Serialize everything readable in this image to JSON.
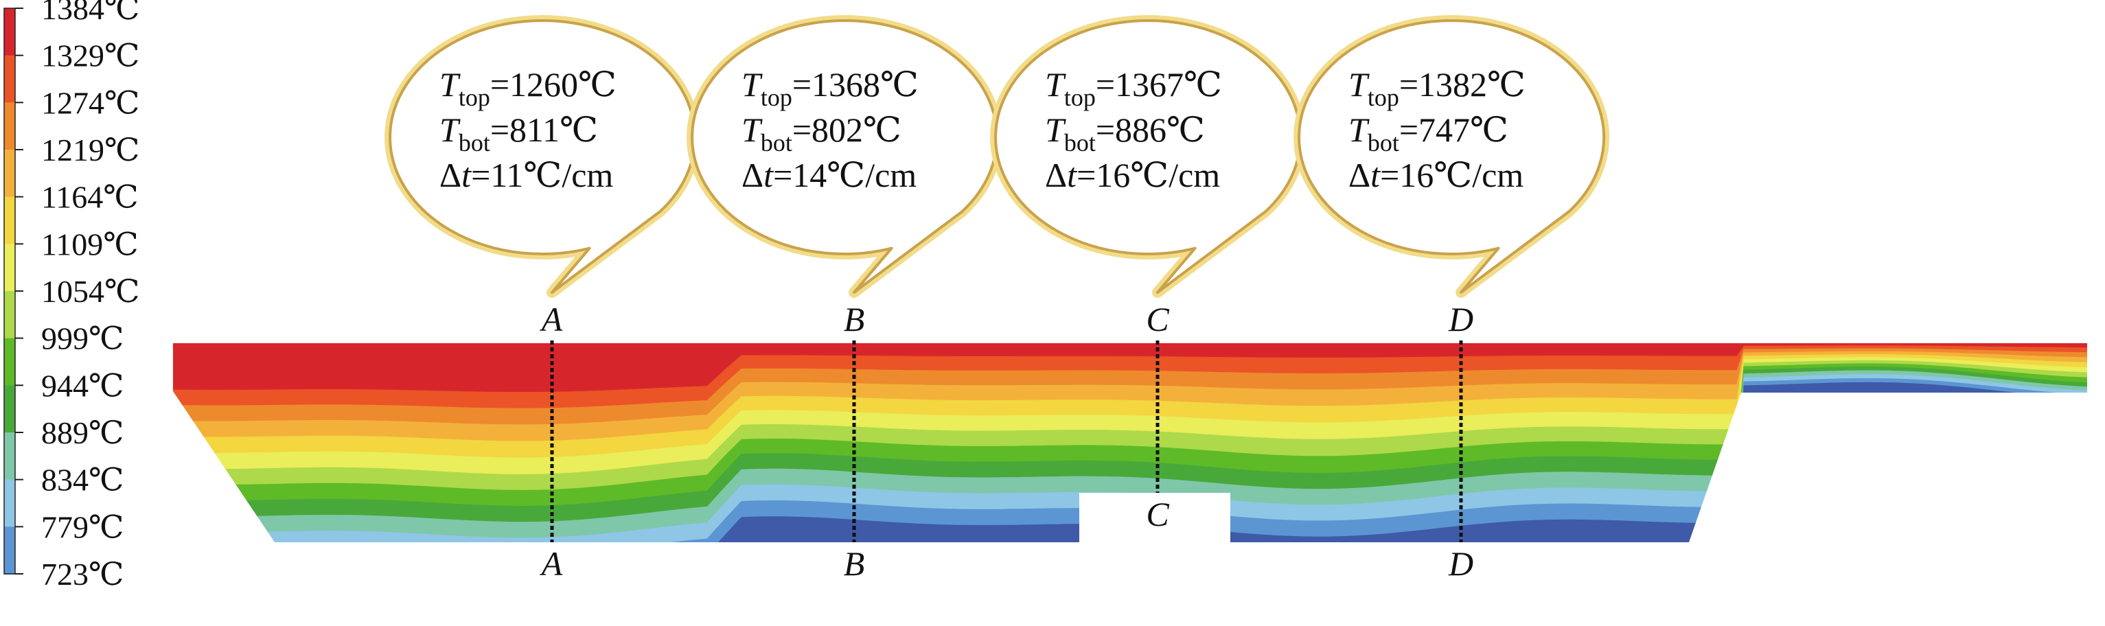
{
  "legend": {
    "levels": [
      "1384℃",
      "1329℃",
      "1274℃",
      "1219℃",
      "1164℃",
      "1109℃",
      "1054℃",
      "999℃",
      "944℃",
      "889℃",
      "834℃",
      "779℃",
      "723℃"
    ],
    "colors": [
      "#d7262b",
      "#ea5427",
      "#ee8a2e",
      "#f3b13b",
      "#f3d640",
      "#e9ee5a",
      "#aed94a",
      "#5ebb27",
      "#49a83a",
      "#7fc7a9",
      "#8fc6e6",
      "#5b96d3",
      "#3f5aa8"
    ]
  },
  "sections": [
    {
      "label": "A",
      "t_top": "1260℃",
      "t_bot": "811℃",
      "grad": "11℃/cm"
    },
    {
      "label": "B",
      "t_top": "1368℃",
      "t_bot": "802℃",
      "grad": "14℃/cm"
    },
    {
      "label": "C",
      "t_top": "1367℃",
      "t_bot": "886℃",
      "grad": "16℃/cm"
    },
    {
      "label": "D",
      "t_top": "1382℃",
      "t_bot": "747℃",
      "grad": "16℃/cm"
    }
  ],
  "labels": {
    "t_sym": "T",
    "t_top_sub": "top",
    "t_bot_sub": "bot",
    "delta": "Δ",
    "t_italic": "t",
    "eq": "="
  }
}
